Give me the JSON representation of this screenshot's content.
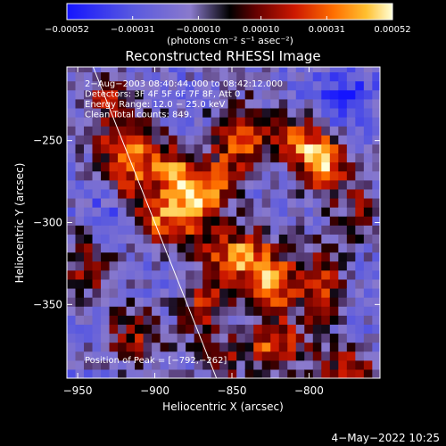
{
  "chart_data": {
    "type": "heatmap",
    "title": "Reconstructed RHESSI Image",
    "xlabel": "Heliocentric X (arcsec)",
    "ylabel": "Heliocentric Y (arcsec)",
    "xlim": [
      -957,
      -754
    ],
    "ylim": [
      -395,
      -205
    ],
    "x_ticks": [
      {
        "value": -950,
        "label": "−950"
      },
      {
        "value": -900,
        "label": "−900"
      },
      {
        "value": -850,
        "label": "−850"
      },
      {
        "value": -800,
        "label": "−800"
      }
    ],
    "y_ticks": [
      {
        "value": -250,
        "label": "−250"
      },
      {
        "value": -300,
        "label": "−300"
      },
      {
        "value": -350,
        "label": "−350"
      }
    ],
    "colorbar": {
      "range": [
        -0.00052,
        0.00052
      ],
      "label": "(photons cm⁻² s⁻¹ asec⁻²)",
      "ticks": [
        {
          "value": -0.00052,
          "label": "−0.00052"
        },
        {
          "value": -0.00031,
          "label": "−0.00031"
        },
        {
          "value": -0.0001,
          "label": "−0.00010"
        },
        {
          "value": 0.0001,
          "label": "0.00010"
        },
        {
          "value": 0.00031,
          "label": "0.00031"
        },
        {
          "value": 0.00052,
          "label": "0.00052"
        }
      ]
    },
    "annotations": [
      "2−Aug−2003 08:40:44.000 to 08:42:12.000",
      "Detectors: 3F 4F 5F 6F 7F 8F, Att 0",
      "Energy Range: 12.0 − 25.0 keV",
      "Clean    Total counts: 849."
    ],
    "peak_label": "Position of Peak = [−792,−262]",
    "limb_line": {
      "x": [
        -940,
        -860
      ],
      "y": [
        -205,
        -395
      ]
    },
    "blobs": [
      {
        "x": -917,
        "y": -260,
        "sx": 14,
        "sy": 18,
        "amp": 1.0
      },
      {
        "x": -897,
        "y": -298,
        "sx": 12,
        "sy": 12,
        "amp": 0.8
      },
      {
        "x": -875,
        "y": -287,
        "sx": 10,
        "sy": 14,
        "amp": 0.9
      },
      {
        "x": -887,
        "y": -268,
        "sx": 10,
        "sy": 10,
        "amp": 0.75
      },
      {
        "x": -842,
        "y": -247,
        "sx": 13,
        "sy": 14,
        "amp": 0.9
      },
      {
        "x": -858,
        "y": -276,
        "sx": 9,
        "sy": 12,
        "amp": 0.65
      },
      {
        "x": -792,
        "y": -262,
        "sx": 12,
        "sy": 12,
        "amp": 1.15
      },
      {
        "x": -810,
        "y": -248,
        "sx": 10,
        "sy": 8,
        "amp": 0.7
      },
      {
        "x": -845,
        "y": -320,
        "sx": 16,
        "sy": 12,
        "amp": 0.95
      },
      {
        "x": -823,
        "y": -338,
        "sx": 12,
        "sy": 12,
        "amp": 0.85
      },
      {
        "x": -868,
        "y": -352,
        "sx": 10,
        "sy": 12,
        "amp": 0.7
      },
      {
        "x": -823,
        "y": -375,
        "sx": 14,
        "sy": 12,
        "amp": 0.85
      },
      {
        "x": -792,
        "y": -338,
        "sx": 10,
        "sy": 18,
        "amp": 0.65
      },
      {
        "x": -775,
        "y": -392,
        "sx": 12,
        "sy": 10,
        "amp": 0.8
      },
      {
        "x": -930,
        "y": -225,
        "sx": 10,
        "sy": 10,
        "amp": 0.55
      },
      {
        "x": -942,
        "y": -325,
        "sx": 12,
        "sy": 14,
        "amp": 0.6
      },
      {
        "x": -912,
        "y": -370,
        "sx": 14,
        "sy": 12,
        "amp": 0.6
      },
      {
        "x": -858,
        "y": -385,
        "sx": 9,
        "sy": 10,
        "amp": 0.5
      },
      {
        "x": -770,
        "y": -290,
        "sx": 10,
        "sy": 14,
        "amp": 0.45
      },
      {
        "x": -775,
        "y": -225,
        "sx": 12,
        "sy": 10,
        "amp": -0.55
      },
      {
        "x": -930,
        "y": -295,
        "sx": 10,
        "sy": 16,
        "amp": -0.35
      }
    ]
  },
  "footer": {
    "timestamp": "4−May−2022 10:25"
  }
}
